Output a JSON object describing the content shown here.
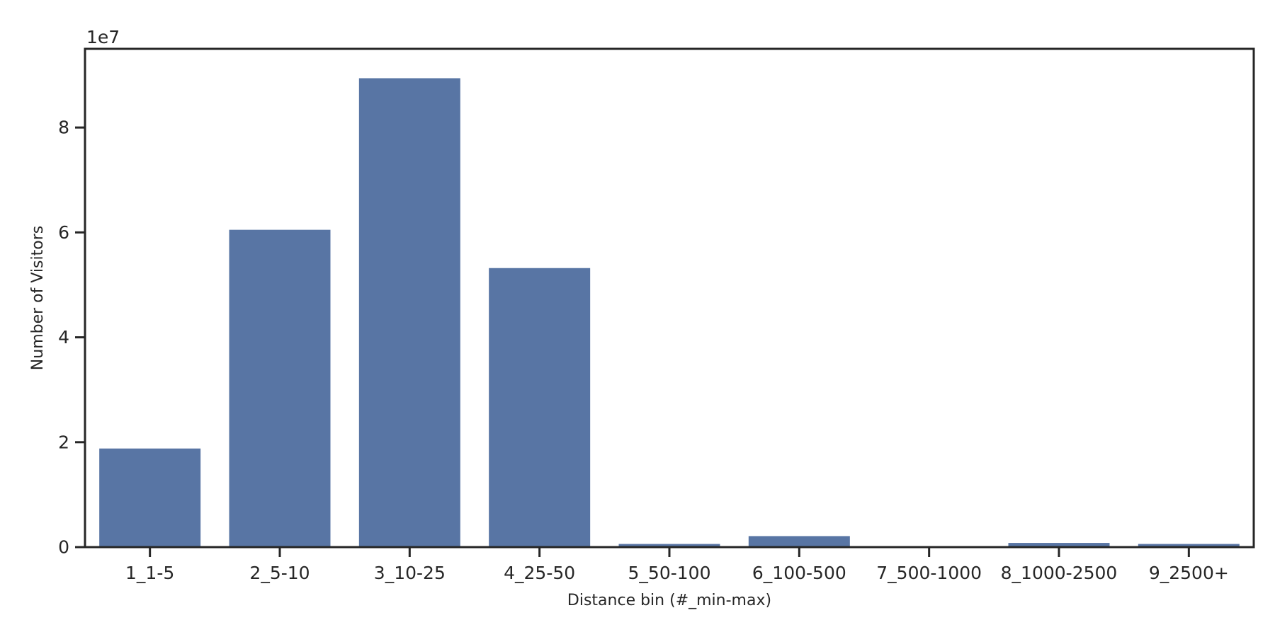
{
  "chart_data": {
    "type": "bar",
    "categories": [
      "1_1-5",
      "2_5-10",
      "3_10-25",
      "4_25-50",
      "5_50-100",
      "6_100-500",
      "7_500-1000",
      "8_1000-2500",
      "9_2500+"
    ],
    "values": [
      18800000,
      60500000,
      89400000,
      53200000,
      600000,
      2100000,
      100000,
      800000,
      600000
    ],
    "xlabel": "Distance bin (#_min-max)",
    "ylabel": "Number of Visitors",
    "y_offset_label": "1e7",
    "ylim": [
      0,
      95000000
    ],
    "yticks": [
      0,
      20000000,
      40000000,
      60000000,
      80000000
    ],
    "ytick_labels": [
      "0",
      "2",
      "4",
      "6",
      "8"
    ],
    "bar_color": "#5875a4",
    "axis_color": "#262626",
    "grid": false,
    "legend": "none"
  }
}
